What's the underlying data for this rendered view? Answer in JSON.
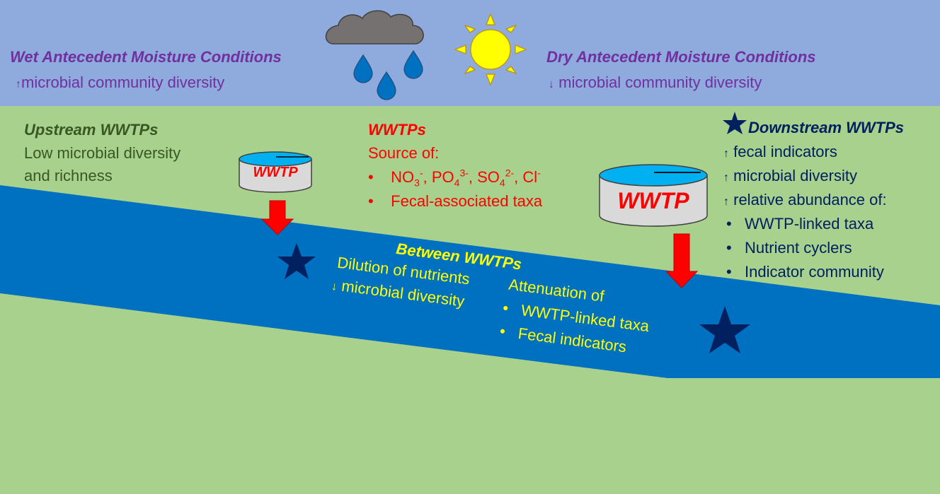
{
  "top": {
    "wet_title": "Wet Antecedent Moisture Conditions",
    "wet_line": "microbial community diversity",
    "dry_title": "Dry Antecedent Moisture Conditions",
    "dry_line": "microbial community diversity"
  },
  "upstream": {
    "title": "Upstream WWTPs",
    "line1": "Low microbial diversity",
    "line2": "and richness"
  },
  "wwtps": {
    "title": "WWTPs",
    "source": "Source of:",
    "bullet_fecal": "Fecal-associated taxa",
    "ions": {
      "no3": "NO",
      "no3_sub": "3",
      "no3_sup": "-",
      "po4": ", PO",
      "po4_sub": "4",
      "po4_sup": "3-",
      "so4": ", SO",
      "so4_sub": "4",
      "so4_sup": "2-",
      "cl": ", Cl",
      "cl_sup": "-"
    }
  },
  "tank_small": {
    "label": "WWTP"
  },
  "tank_large": {
    "label": "WWTP"
  },
  "downstream": {
    "title": "Downstream WWTPs",
    "line1": "fecal indicators",
    "line2": "microbial diversity",
    "line3": "relative abundance of:",
    "bullets": [
      "WWTP-linked taxa",
      "Nutrient cyclers",
      "Indicator community"
    ]
  },
  "between": {
    "title": "Between WWTPs",
    "line1": "Dilution of nutrients",
    "line2": "microbial diversity",
    "atten": "Attenuation of",
    "bullet1": "WWTP-linked taxa",
    "bullet2": "Fecal indicators"
  },
  "colors": {
    "sky": "#8faadc",
    "land": "#a9d18e",
    "river": "#0070c0",
    "star": "#002060",
    "arrow": "#ff0000",
    "tank_top": "#00b0f0",
    "tank_body": "#d9d9d9"
  }
}
